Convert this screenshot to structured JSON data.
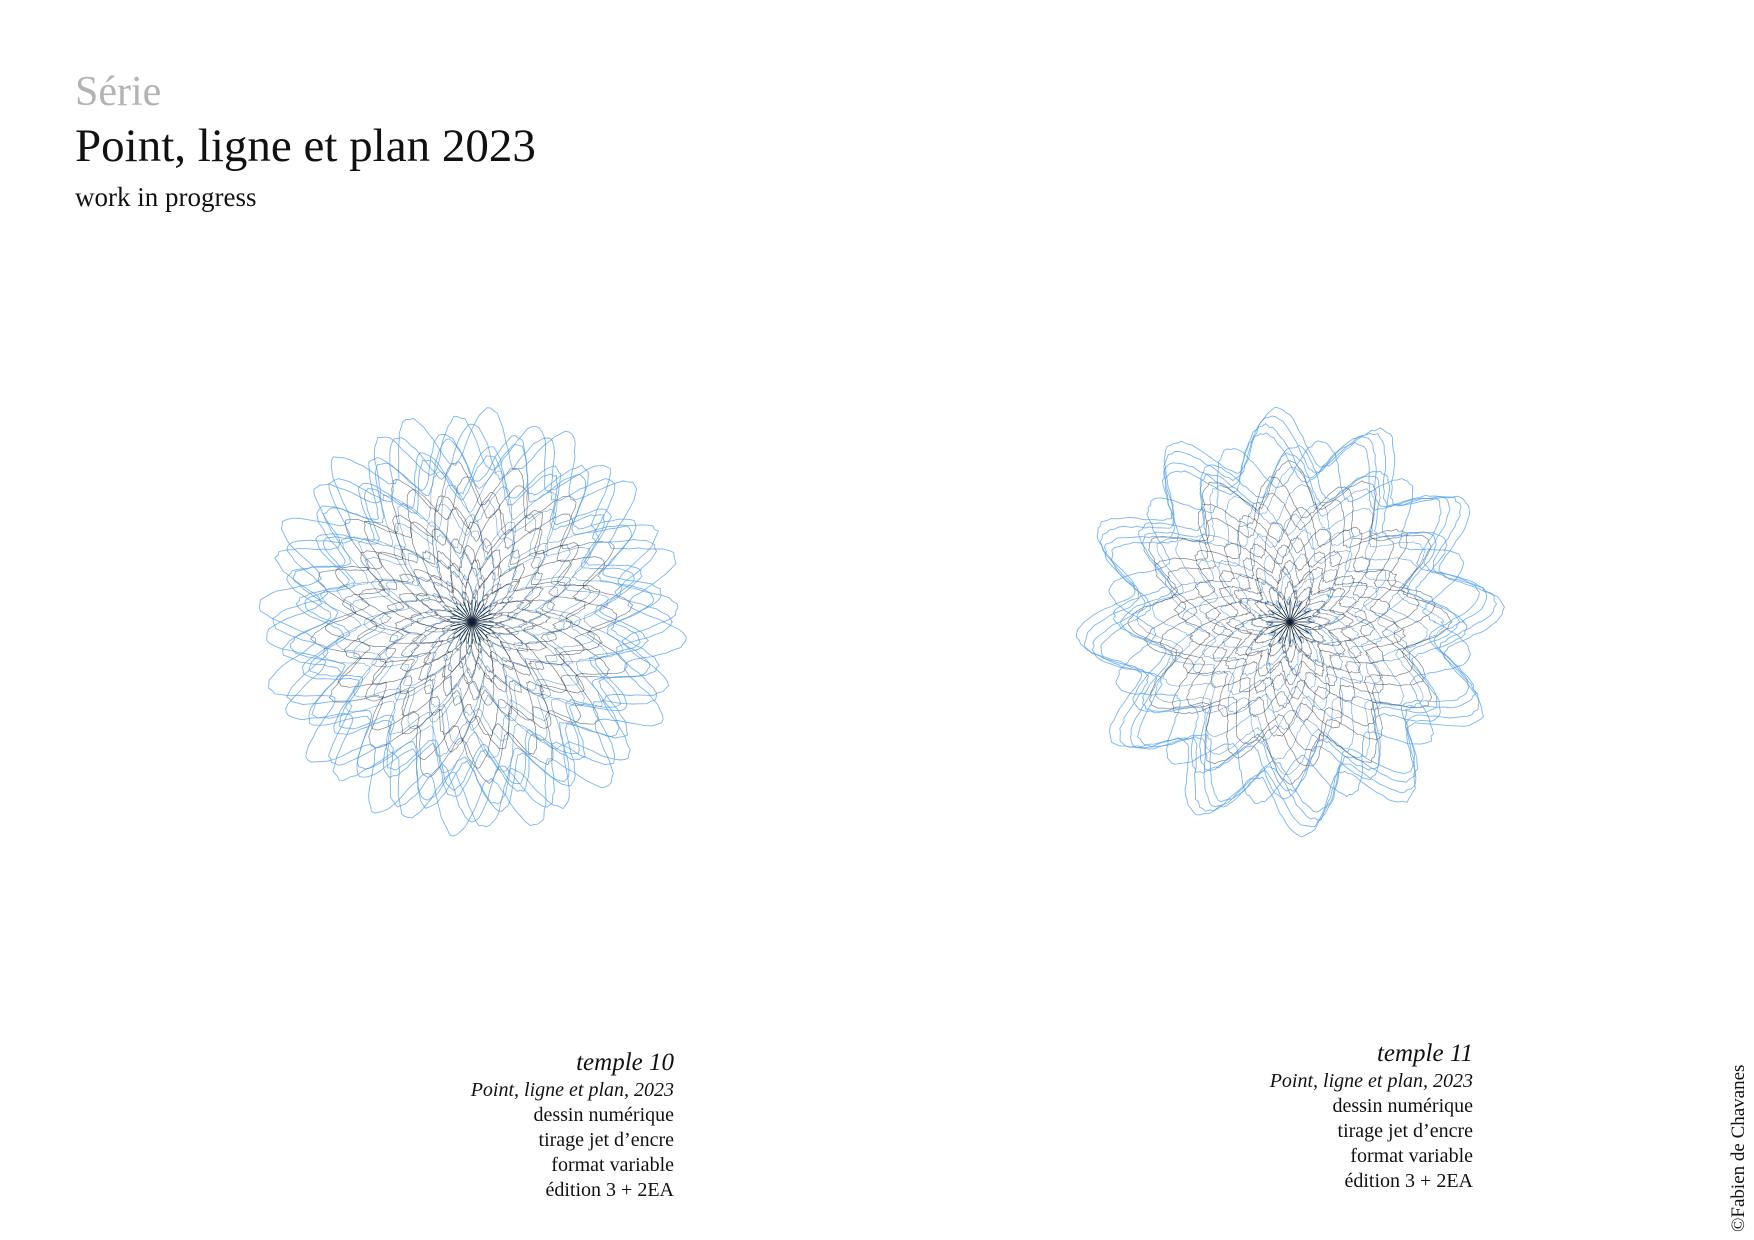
{
  "header": {
    "eyebrow": "Série",
    "title": "Point, ligne et plan 2023",
    "subtitle": "work in progress"
  },
  "colors": {
    "light_blue": "#4f9ee6",
    "mid_blue": "#1c6fbf",
    "dark_navy": "#0f1f33",
    "eyebrow_gray": "#b3b3b3"
  },
  "works": [
    {
      "title": "temple 10",
      "series": "Point, ligne et plan, 2023",
      "medium": "dessin numérique",
      "print": "tirage jet d’encre",
      "format": "format variable",
      "edition": "édition 3 + 2EA",
      "image": "mandala-drawing",
      "petals": 16
    },
    {
      "title": "temple 11",
      "series": "Point, ligne et plan, 2023",
      "medium": "dessin numérique",
      "print": "tirage jet d’encre",
      "format": "format variable",
      "edition": "édition 3 + 2EA",
      "image": "mandala-drawing",
      "petals": 12
    }
  ],
  "copyright": "©Fabien de Chavanes"
}
